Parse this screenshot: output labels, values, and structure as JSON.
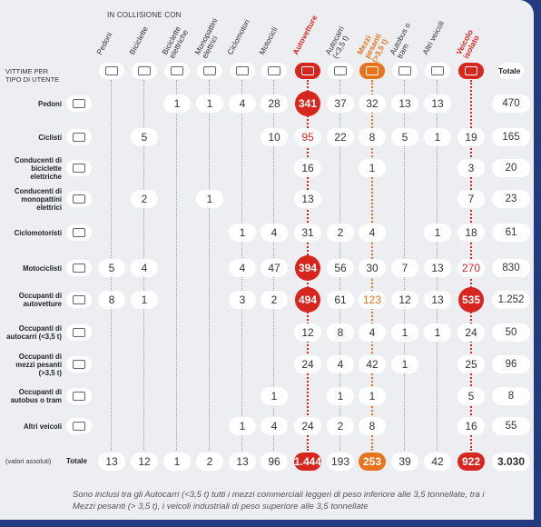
{
  "header": {
    "subtitle": "IN COLLISIONE CON",
    "row_header": "VITTIME PER TIPO DI UTENTE"
  },
  "columns": [
    {
      "label": "Pedoni"
    },
    {
      "label": "Biciclette"
    },
    {
      "label": "Biciclette elettriche"
    },
    {
      "label": "Monopattini elettrici"
    },
    {
      "label": "Ciclomotori"
    },
    {
      "label": "Motocicli"
    },
    {
      "label": "Autovetture",
      "color": "#d7261e"
    },
    {
      "label": "Autocarri (<3,5 t)"
    },
    {
      "label": "Mezzi pesanti (>3,5 t)",
      "color": "#e8731c"
    },
    {
      "label": "Autobus o tram"
    },
    {
      "label": "Altri veicoli"
    },
    {
      "label": "Veicolo isolato",
      "color": "#d7261e"
    },
    {
      "label": "Totale"
    }
  ],
  "rows": [
    {
      "label": "Pedoni",
      "cells": [
        null,
        null,
        1,
        1,
        4,
        28,
        341,
        37,
        32,
        13,
        13,
        null,
        470
      ]
    },
    {
      "label": "Ciclisti",
      "cells": [
        null,
        5,
        null,
        null,
        null,
        10,
        95,
        22,
        8,
        5,
        1,
        19,
        165
      ]
    },
    {
      "label": "Conducenti di biciclette elettriche",
      "cells": [
        null,
        null,
        null,
        null,
        null,
        null,
        16,
        null,
        1,
        null,
        null,
        3,
        20
      ]
    },
    {
      "label": "Conducenti di monopattini elettrici",
      "cells": [
        null,
        2,
        null,
        1,
        null,
        null,
        13,
        null,
        null,
        null,
        null,
        7,
        23
      ]
    },
    {
      "label": "Ciclomotoristi",
      "cells": [
        null,
        null,
        null,
        null,
        1,
        4,
        31,
        2,
        4,
        null,
        1,
        18,
        61
      ]
    },
    {
      "label": "Motociclisti",
      "cells": [
        5,
        4,
        null,
        null,
        4,
        47,
        394,
        56,
        30,
        7,
        13,
        270,
        830
      ]
    },
    {
      "label": "Occupanti di autovetture",
      "cells": [
        8,
        1,
        null,
        null,
        3,
        2,
        494,
        61,
        123,
        12,
        13,
        535,
        "1.252"
      ]
    },
    {
      "label": "Occupanti di autocarri (<3,5 t)",
      "cells": [
        null,
        null,
        null,
        null,
        null,
        null,
        12,
        8,
        4,
        1,
        1,
        24,
        50
      ]
    },
    {
      "label": "Occupanti di mezzi pesanti (>3,5 t)",
      "cells": [
        null,
        null,
        null,
        null,
        null,
        null,
        24,
        4,
        42,
        1,
        null,
        25,
        96
      ]
    },
    {
      "label": "Occupanti di autobus o tram",
      "cells": [
        null,
        null,
        null,
        null,
        null,
        1,
        null,
        1,
        1,
        null,
        null,
        5,
        8
      ]
    },
    {
      "label": "Altri veicoli",
      "cells": [
        null,
        null,
        null,
        null,
        1,
        4,
        24,
        2,
        8,
        null,
        null,
        16,
        55
      ]
    }
  ],
  "totals": {
    "note": "(valori assoluti)",
    "label": "Totale",
    "cells": [
      13,
      12,
      1,
      2,
      13,
      96,
      "1.444",
      193,
      253,
      39,
      42,
      922,
      "3.030"
    ]
  },
  "footnote": "Sono inclusi tra gli Autocarri (<3,5 t) tutti i mezzi commerciali leggeri di peso inferiore alle 3,5 tonnellate, tra i Mezzi pesanti (> 3,5 t), i veicoli industriali di peso superiore alle 3,5 tonnellate"
}
